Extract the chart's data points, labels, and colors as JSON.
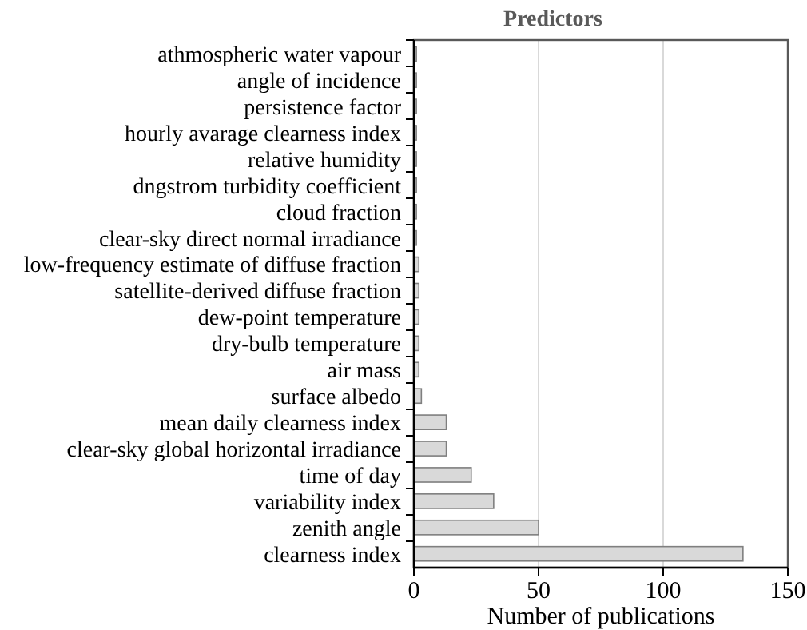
{
  "chart_data": {
    "type": "bar",
    "orientation": "horizontal",
    "title": "Predictors",
    "xlabel": "Number of publications",
    "categories": [
      "athmospheric water vapour",
      "angle of incidence",
      "persistence factor",
      "hourly avarage clearness index",
      "relative humidity",
      "dngstrom turbidity coefficient",
      "cloud fraction ",
      "clear-sky direct normal irradiance",
      "low-frequency estimate of diffuse fraction",
      "satellite-derived diffuse fraction",
      "dew-point temperature",
      "dry-bulb temperature",
      "air mass",
      "surface albedo",
      "mean daily clearness index",
      "clear-sky global horizontal irradiance",
      "time of day",
      "variability index",
      "zenith angle",
      "clearness index"
    ],
    "values": [
      1,
      1,
      1,
      1,
      1,
      1,
      1,
      1,
      2,
      2,
      2,
      2,
      2,
      3,
      13,
      13,
      23,
      32,
      50,
      132
    ],
    "color": "#d9d9d9",
    "xlim": [
      0,
      150
    ],
    "xticks": [
      0,
      50,
      100,
      150
    ],
    "grid": "x"
  }
}
